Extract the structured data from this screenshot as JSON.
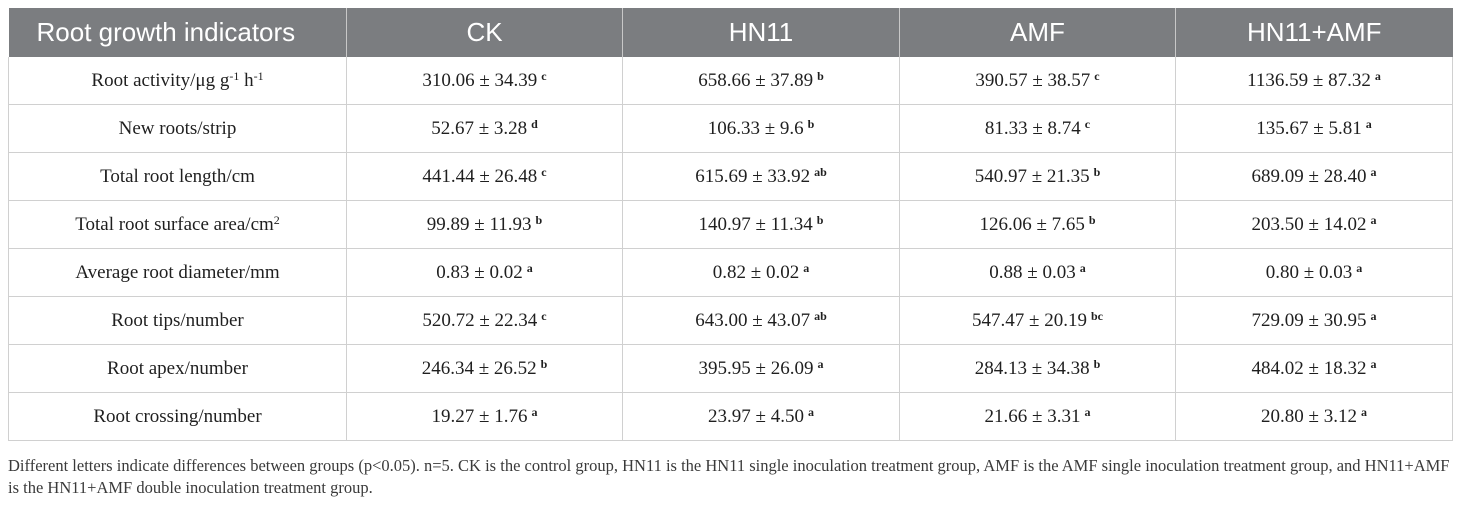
{
  "table": {
    "headers": [
      "Root growth indicators",
      "CK",
      "HN11",
      "AMF",
      "HN11+AMF"
    ],
    "rows": [
      {
        "indicator": "Root activity/μg g",
        "indicator_sup1": "-1",
        "indicator_mid": " h",
        "indicator_sup2": "-1",
        "cells": [
          {
            "value": "310.06 ± 34.39",
            "letter": "c"
          },
          {
            "value": "658.66 ± 37.89",
            "letter": "b"
          },
          {
            "value": "390.57 ± 38.57",
            "letter": "c"
          },
          {
            "value": "1136.59 ± 87.32",
            "letter": "a"
          }
        ]
      },
      {
        "indicator": "New roots/strip",
        "cells": [
          {
            "value": "52.67 ± 3.28",
            "letter": "d"
          },
          {
            "value": "106.33 ± 9.6",
            "letter": "b"
          },
          {
            "value": "81.33 ± 8.74",
            "letter": "c"
          },
          {
            "value": "135.67 ± 5.81",
            "letter": "a"
          }
        ]
      },
      {
        "indicator": "Total root length/cm",
        "cells": [
          {
            "value": "441.44 ± 26.48",
            "letter": "c"
          },
          {
            "value": "615.69 ± 33.92",
            "letter": "ab"
          },
          {
            "value": "540.97 ± 21.35",
            "letter": "b"
          },
          {
            "value": "689.09 ± 28.40",
            "letter": "a"
          }
        ]
      },
      {
        "indicator": "Total root surface area/cm",
        "indicator_sup1": "2",
        "cells": [
          {
            "value": "99.89 ± 11.93",
            "letter": "b"
          },
          {
            "value": "140.97 ± 11.34",
            "letter": "b"
          },
          {
            "value": "126.06 ± 7.65",
            "letter": "b"
          },
          {
            "value": "203.50 ± 14.02",
            "letter": "a"
          }
        ]
      },
      {
        "indicator": "Average root diameter/mm",
        "cells": [
          {
            "value": "0.83 ± 0.02",
            "letter": "a"
          },
          {
            "value": "0.82 ± 0.02",
            "letter": "a"
          },
          {
            "value": "0.88 ± 0.03",
            "letter": "a"
          },
          {
            "value": "0.80 ± 0.03",
            "letter": "a"
          }
        ]
      },
      {
        "indicator": "Root tips/number",
        "cells": [
          {
            "value": "520.72 ± 22.34",
            "letter": "c"
          },
          {
            "value": "643.00 ± 43.07",
            "letter": "ab"
          },
          {
            "value": "547.47 ± 20.19",
            "letter": "bc"
          },
          {
            "value": "729.09 ± 30.95",
            "letter": "a"
          }
        ]
      },
      {
        "indicator": "Root apex/number",
        "cells": [
          {
            "value": "246.34 ± 26.52",
            "letter": "b"
          },
          {
            "value": "395.95 ± 26.09",
            "letter": "a"
          },
          {
            "value": "284.13 ± 34.38",
            "letter": "b"
          },
          {
            "value": "484.02 ± 18.32",
            "letter": "a"
          }
        ]
      },
      {
        "indicator": "Root crossing/number",
        "cells": [
          {
            "value": "19.27 ± 1.76",
            "letter": "a"
          },
          {
            "value": "23.97 ± 4.50",
            "letter": "a"
          },
          {
            "value": "21.66 ± 3.31",
            "letter": "a"
          },
          {
            "value": "20.80 ± 3.12",
            "letter": "a"
          }
        ]
      }
    ]
  },
  "footnote": "Different letters indicate differences between groups (p<0.05). n=5. CK is the control group, HN11 is the HN11 single inoculation treatment group, AMF is the AMF single inoculation treatment group, and HN11+AMF is the HN11+AMF double inoculation treatment group."
}
